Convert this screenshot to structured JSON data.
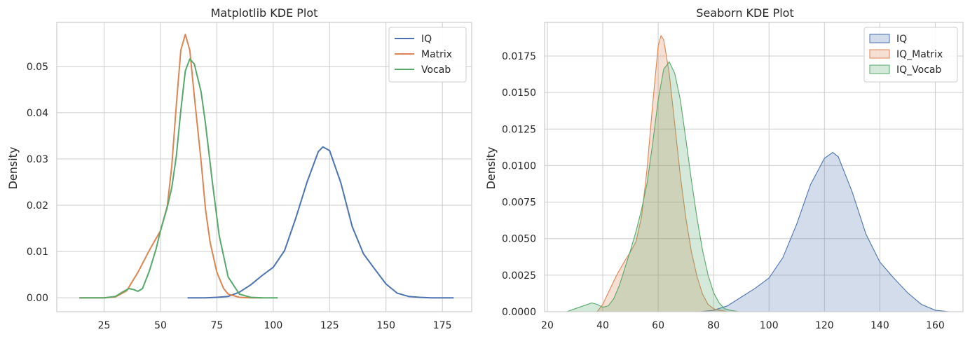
{
  "chart_data": [
    {
      "type": "line",
      "title": "Matplotlib KDE Plot",
      "xlabel": "",
      "ylabel": "Density",
      "xlim": [
        4,
        188
      ],
      "ylim": [
        -0.003,
        0.0595
      ],
      "xticks": [
        25,
        50,
        75,
        100,
        125,
        150,
        175
      ],
      "yticks": [
        0.0,
        0.01,
        0.02,
        0.03,
        0.04,
        0.05
      ],
      "ytick_labels": [
        "0.00",
        "0.01",
        "0.02",
        "0.03",
        "0.04",
        "0.05"
      ],
      "grid": true,
      "legend": "top-right",
      "series": [
        {
          "name": "IQ",
          "color": "#4c72b0",
          "x": [
            62,
            70,
            75,
            80,
            85,
            90,
            95,
            100,
            105,
            110,
            115,
            120,
            122,
            125,
            130,
            135,
            140,
            145,
            150,
            155,
            160,
            165,
            170,
            175,
            180
          ],
          "y": [
            0.0,
            0.0,
            0.0001,
            0.0003,
            0.0012,
            0.0028,
            0.0048,
            0.0066,
            0.0102,
            0.0172,
            0.025,
            0.0316,
            0.0326,
            0.0318,
            0.0248,
            0.0154,
            0.0095,
            0.0062,
            0.003,
            0.001,
            0.0003,
            0.0001,
            0.0,
            0.0,
            0.0
          ]
        },
        {
          "name": "Matrix",
          "color": "#dd8452",
          "x": [
            14,
            25,
            30,
            35,
            40,
            45,
            50,
            53,
            55,
            57,
            59,
            61,
            63,
            65,
            68,
            70,
            72,
            75,
            78,
            80,
            85,
            90,
            95
          ],
          "y": [
            0.0,
            0.0,
            0.0002,
            0.0015,
            0.0055,
            0.0102,
            0.0145,
            0.0198,
            0.0285,
            0.0415,
            0.0535,
            0.0569,
            0.0535,
            0.0435,
            0.0295,
            0.019,
            0.012,
            0.0055,
            0.002,
            0.0008,
            0.0001,
            0.0,
            0.0
          ]
        },
        {
          "name": "Vocab",
          "color": "#55a868",
          "x": [
            14,
            25,
            30,
            33,
            36,
            38,
            40,
            42,
            45,
            48,
            50,
            53,
            55,
            57,
            59,
            61,
            63,
            65,
            68,
            70,
            73,
            76,
            80,
            85,
            90,
            95,
            102
          ],
          "y": [
            0.0,
            0.0,
            0.0003,
            0.0012,
            0.002,
            0.0018,
            0.0014,
            0.002,
            0.0057,
            0.0105,
            0.0145,
            0.0196,
            0.0238,
            0.0305,
            0.0405,
            0.049,
            0.0516,
            0.0505,
            0.0445,
            0.0375,
            0.025,
            0.0135,
            0.0045,
            0.0008,
            0.0001,
            0.0,
            0.0
          ]
        }
      ]
    },
    {
      "type": "area",
      "title": "Seaborn KDE Plot",
      "xlabel": "",
      "ylabel": "Density",
      "xlim": [
        19,
        170
      ],
      "ylim": [
        0,
        0.0198
      ],
      "xticks": [
        20,
        40,
        60,
        80,
        100,
        120,
        140,
        160
      ],
      "yticks": [
        0.0,
        0.0025,
        0.005,
        0.0075,
        0.01,
        0.0125,
        0.015,
        0.0175
      ],
      "ytick_labels": [
        "0.0000",
        "0.0025",
        "0.0050",
        "0.0075",
        "0.0100",
        "0.0125",
        "0.0150",
        "0.0175"
      ],
      "grid": true,
      "legend": "top-right",
      "series": [
        {
          "name": "IQ",
          "color": "#4c72b0",
          "x": [
            75,
            80,
            85,
            90,
            95,
            100,
            105,
            110,
            115,
            120,
            123,
            125,
            130,
            135,
            140,
            145,
            150,
            155,
            160,
            165,
            168
          ],
          "y": [
            0.0,
            0.0001,
            0.0004,
            0.001,
            0.0016,
            0.0023,
            0.0037,
            0.006,
            0.0087,
            0.0105,
            0.0109,
            0.0106,
            0.0082,
            0.0053,
            0.0034,
            0.0023,
            0.0013,
            0.0005,
            0.0001,
            0.0,
            0.0
          ]
        },
        {
          "name": "IQ_Matrix",
          "color": "#dd8452",
          "x": [
            38,
            40,
            42,
            45,
            48,
            50,
            52,
            54,
            56,
            58,
            60,
            61,
            62,
            64,
            66,
            68,
            70,
            72,
            74,
            76,
            78,
            80,
            82,
            85,
            88
          ],
          "y": [
            0.0,
            0.0005,
            0.0013,
            0.0025,
            0.0035,
            0.0041,
            0.0048,
            0.0065,
            0.0098,
            0.0142,
            0.0182,
            0.0189,
            0.0186,
            0.0163,
            0.0128,
            0.0093,
            0.0064,
            0.0041,
            0.0024,
            0.0012,
            0.0005,
            0.0002,
            0.0001,
            0.0,
            0.0
          ]
        },
        {
          "name": "IQ_Vocab",
          "color": "#55a868",
          "x": [
            27,
            30,
            33,
            36,
            38,
            40,
            42,
            44,
            46,
            48,
            50,
            52,
            54,
            56,
            58,
            60,
            62,
            64,
            66,
            68,
            70,
            72,
            74,
            76,
            78,
            80,
            82,
            84,
            86,
            89
          ],
          "y": [
            0.0,
            0.0002,
            0.0004,
            0.0006,
            0.0005,
            0.0003,
            0.0004,
            0.0009,
            0.0018,
            0.003,
            0.0042,
            0.0055,
            0.007,
            0.0088,
            0.0115,
            0.0145,
            0.0166,
            0.0171,
            0.0163,
            0.0145,
            0.0118,
            0.009,
            0.0064,
            0.0042,
            0.0025,
            0.0013,
            0.0006,
            0.0002,
            0.0001,
            0.0
          ]
        }
      ]
    }
  ]
}
